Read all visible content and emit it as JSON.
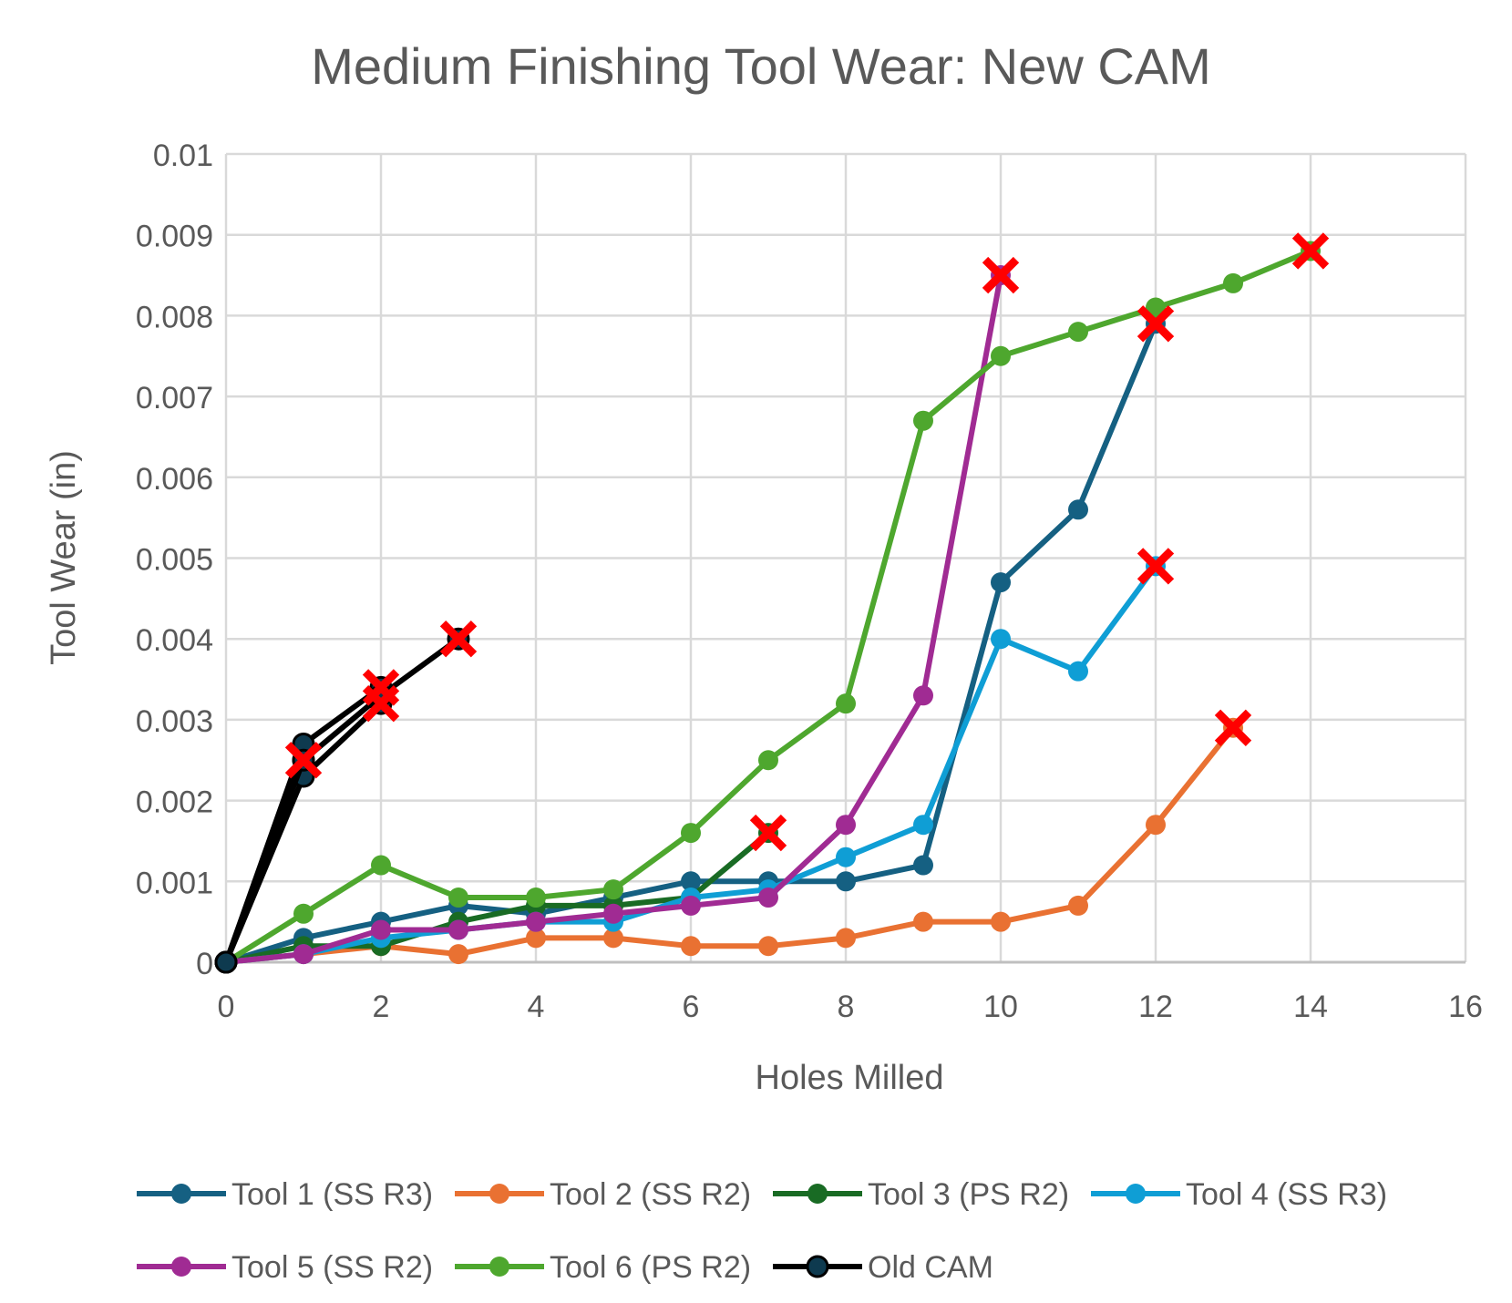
{
  "chart_data": {
    "type": "line",
    "title": "Medium Finishing Tool Wear: New CAM",
    "xlabel": "Holes Milled",
    "ylabel": "Tool Wear (in)",
    "xlim": [
      0,
      16
    ],
    "ylim": [
      0,
      0.01
    ],
    "xticks": [
      "0",
      "2",
      "4",
      "6",
      "8",
      "10",
      "12",
      "14",
      "16"
    ],
    "yticks": [
      "0",
      "0.001",
      "0.002",
      "0.003",
      "0.004",
      "0.005",
      "0.006",
      "0.007",
      "0.008",
      "0.009",
      "0.01"
    ],
    "grid": true,
    "legend_position": "bottom",
    "failure_marker": "red-x",
    "failure_color": "#FF0000",
    "series": [
      {
        "name": "Tool 1 (SS R3)",
        "color": "#156082",
        "x": [
          0,
          1,
          2,
          3,
          4,
          5,
          6,
          7,
          8,
          9,
          10,
          11,
          12
        ],
        "y": [
          0,
          0.0003,
          0.0005,
          0.0007,
          0.0006,
          0.0008,
          0.001,
          0.001,
          0.001,
          0.0012,
          0.0047,
          0.0056,
          0.0079
        ],
        "failed_at_end": true
      },
      {
        "name": "Tool 2 (SS R2)",
        "color": "#E97132",
        "x": [
          0,
          1,
          2,
          3,
          4,
          5,
          6,
          7,
          8,
          9,
          10,
          11,
          12,
          13
        ],
        "y": [
          0,
          0.0001,
          0.0002,
          0.0001,
          0.0003,
          0.0003,
          0.0002,
          0.0002,
          0.0003,
          0.0005,
          0.0005,
          0.0007,
          0.0017,
          0.0029
        ],
        "failed_at_end": true
      },
      {
        "name": "Tool 3 (PS R2)",
        "color": "#196B24",
        "x": [
          0,
          1,
          2,
          3,
          4,
          5,
          6,
          7
        ],
        "y": [
          0,
          0.0002,
          0.0002,
          0.0005,
          0.0007,
          0.0007,
          0.0008,
          0.0016
        ],
        "failed_at_end": true
      },
      {
        "name": "Tool 4 (SS R3)",
        "color": "#0F9ED5",
        "x": [
          0,
          1,
          2,
          3,
          4,
          5,
          6,
          7,
          8,
          9,
          10,
          11,
          12
        ],
        "y": [
          0,
          0.0001,
          0.0003,
          0.0004,
          0.0005,
          0.0005,
          0.0008,
          0.0009,
          0.0013,
          0.0017,
          0.004,
          0.0036,
          0.0049
        ],
        "failed_at_end": true
      },
      {
        "name": "Tool 5 (SS R2)",
        "color": "#A02B93",
        "x": [
          0,
          1,
          2,
          3,
          4,
          5,
          6,
          7,
          8,
          9,
          10
        ],
        "y": [
          0,
          0.0001,
          0.0004,
          0.0004,
          0.0005,
          0.0006,
          0.0007,
          0.0008,
          0.0017,
          0.0033,
          0.0085
        ],
        "failed_at_end": true
      },
      {
        "name": "Tool 6 (PS R2)",
        "color": "#4EA72E",
        "x": [
          0,
          1,
          2,
          3,
          4,
          5,
          6,
          7,
          8,
          9,
          10,
          11,
          12,
          13,
          14
        ],
        "y": [
          0,
          0.0006,
          0.0012,
          0.0008,
          0.0008,
          0.0009,
          0.0016,
          0.0025,
          0.0032,
          0.0067,
          0.0075,
          0.0078,
          0.0081,
          0.0084,
          0.0088
        ],
        "failed_at_end": true
      },
      {
        "name": "Old CAM",
        "color": "#000000",
        "marker_fill": "#0E3A4F",
        "runs": [
          {
            "x": [
              0,
              1
            ],
            "y": [
              0,
              0.0025
            ]
          },
          {
            "x": [
              0,
              1,
              2
            ],
            "y": [
              0,
              0.0027,
              0.0034
            ]
          },
          {
            "x": [
              0,
              1,
              2
            ],
            "y": [
              0,
              0.0023,
              0.0032
            ]
          },
          {
            "x": [
              0,
              1,
              2,
              3
            ],
            "y": [
              0,
              0.0025,
              0.0033,
              0.004
            ]
          }
        ],
        "failed_at_end": true
      }
    ]
  }
}
